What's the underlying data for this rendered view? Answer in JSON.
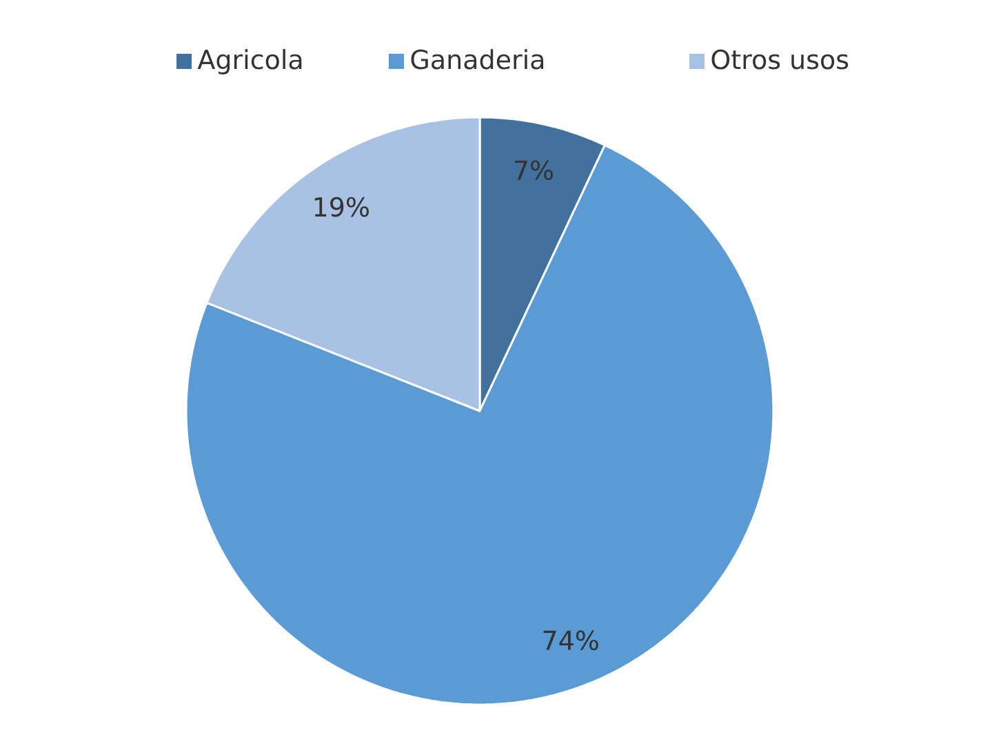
{
  "chart_data": {
    "type": "pie",
    "categories": [
      "Agricola",
      "Ganaderia",
      "Otros usos"
    ],
    "values": [
      7,
      74,
      19
    ],
    "colors": [
      "#41719c",
      "#5b9bd5",
      "#a9c1e2"
    ],
    "value_labels": [
      "7%",
      "74%",
      "19%"
    ],
    "legend": "top"
  }
}
